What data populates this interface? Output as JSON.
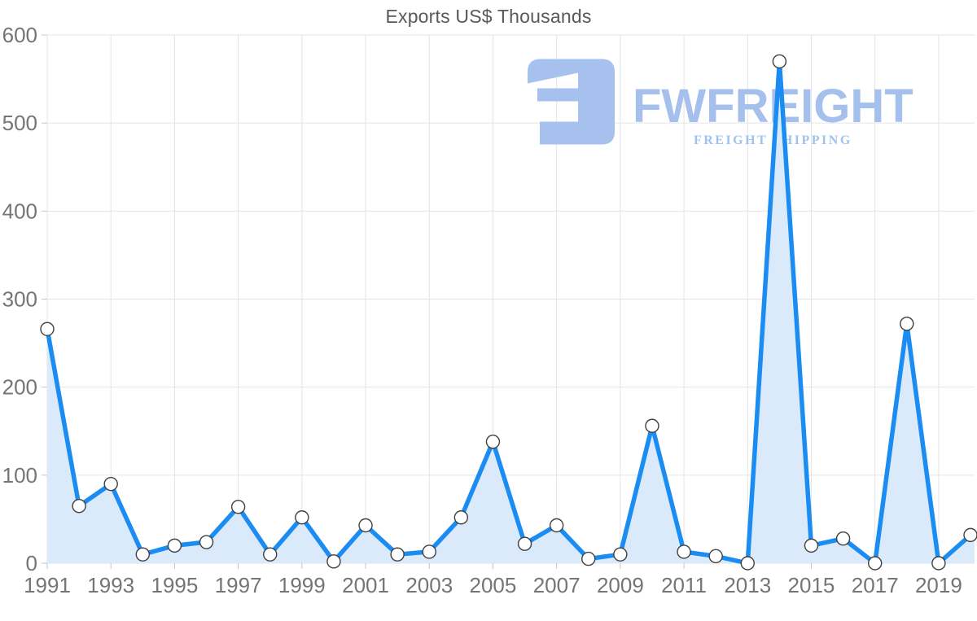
{
  "watermark": {
    "brand": "FWFREIGHT",
    "tagline": "FREIGHT SHIPPING",
    "logo_icon": "fwfreight-logo",
    "brand_color": "#a6c0ee",
    "tagline_color": "#9fc3f1",
    "logo_color": "#a7c1ef"
  },
  "chart_data": {
    "type": "line",
    "title": "Exports US$ Thousands",
    "xlabel": "",
    "ylabel": "",
    "x": [
      1991,
      1992,
      1993,
      1994,
      1995,
      1996,
      1997,
      1998,
      1999,
      2000,
      2001,
      2002,
      2003,
      2004,
      2005,
      2006,
      2007,
      2008,
      2009,
      2010,
      2011,
      2012,
      2013,
      2014,
      2015,
      2016,
      2017,
      2018,
      2019,
      2020
    ],
    "series": [
      {
        "name": "Exports US$ Thousands",
        "values": [
          266,
          65,
          90,
          10,
          20,
          24,
          64,
          10,
          52,
          2,
          43,
          10,
          13,
          52,
          138,
          22,
          43,
          5,
          10,
          156,
          13,
          8,
          0,
          570,
          20,
          28,
          0,
          272,
          0,
          32
        ]
      }
    ],
    "ylim": [
      0,
      600
    ],
    "yticks": [
      0,
      100,
      200,
      300,
      400,
      500,
      600
    ],
    "xtick_labels": [
      "1991",
      "1993",
      "1995",
      "1997",
      "1999",
      "2001",
      "2003",
      "2005",
      "2007",
      "2009",
      "2011",
      "2013",
      "2015",
      "2017",
      "2019"
    ],
    "grid": true,
    "legend": "none",
    "line_color": "#1b8df2",
    "fill_color": "#dbeafb",
    "marker_fill": "#ffffff",
    "marker_stroke": "#404040",
    "grid_color": "#e4e4e4",
    "tick_color": "#c4c4c4",
    "label_color": "#757575",
    "title_color": "#58595b"
  }
}
